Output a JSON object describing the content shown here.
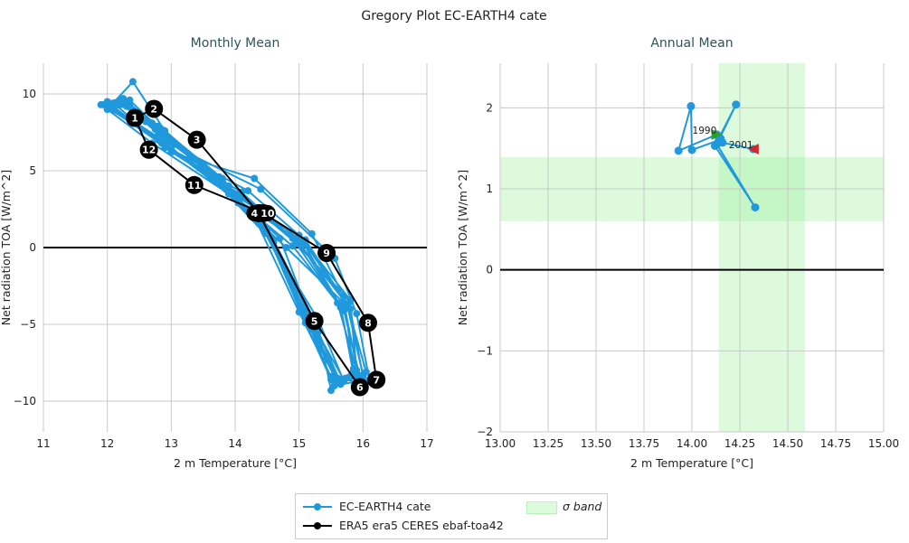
{
  "title": "Gregory Plot EC-EARTH4 cate",
  "colors": {
    "model": "#1f99dc",
    "obs": "#000000",
    "band": "#90ee90",
    "title": "#2f5555",
    "start": "#2ca02c",
    "end": "#d62728"
  },
  "chart_data": [
    {
      "type": "line",
      "title": "Monthly Mean",
      "xlabel": "2 m Temperature [°C]",
      "ylabel": "Net radiation TOA [W/m^2]",
      "xlim": [
        11,
        17
      ],
      "ylim": [
        -12,
        12
      ],
      "xticks": [
        11,
        12,
        13,
        14,
        15,
        16,
        17
      ],
      "yticks": [
        -10,
        -5,
        0,
        5,
        10
      ],
      "grid": true,
      "hline": 0,
      "series": [
        {
          "name": "EC-EARTH4 cate",
          "years": [
            {
              "x": [
                12.0,
                12.4,
                12.9,
                13.8,
                14.6,
                15.3,
                15.5,
                15.9,
                15.6,
                14.9,
                14.1,
                12.9
              ],
              "y": [
                9.0,
                10.8,
                7.6,
                4.4,
                0.5,
                -5.2,
                -9.3,
                -8.0,
                -3.6,
                0.6,
                3.6,
                6.6
              ]
            },
            {
              "x": [
                11.95,
                12.2,
                12.7,
                13.6,
                14.5,
                15.1,
                15.6,
                16.0,
                15.8,
                15.1,
                14.0,
                12.8
              ],
              "y": [
                9.3,
                9.6,
                8.0,
                4.8,
                1.0,
                -4.6,
                -8.8,
                -8.4,
                -4.0,
                0.2,
                3.2,
                7.0
              ]
            },
            {
              "x": [
                12.1,
                12.3,
                12.8,
                13.9,
                14.4,
                15.2,
                15.7,
                15.85,
                15.7,
                15.2,
                14.3,
                13.0
              ],
              "y": [
                9.1,
                9.2,
                7.4,
                4.0,
                1.5,
                -4.9,
                -8.6,
                -7.9,
                -3.2,
                0.9,
                4.5,
                6.2
              ]
            },
            {
              "x": [
                12.0,
                12.25,
                12.6,
                13.5,
                14.6,
                15.3,
                15.65,
                16.1,
                15.9,
                15.56,
                14.4,
                12.9
              ],
              "y": [
                9.5,
                9.7,
                8.2,
                5.2,
                0.3,
                -5.5,
                -8.9,
                -8.6,
                -4.3,
                -0.7,
                3.8,
                6.9
              ]
            },
            {
              "x": [
                12.05,
                12.35,
                12.85,
                13.75,
                14.3,
                15.0,
                15.5,
                15.95,
                15.7,
                14.8,
                14.05,
                12.8
              ],
              "y": [
                9.2,
                9.3,
                7.7,
                4.6,
                2.0,
                -4.2,
                -8.4,
                -8.8,
                -3.6,
                0.0,
                2.9,
                7.2
              ]
            },
            {
              "x": [
                11.9,
                12.2,
                12.75,
                13.65,
                14.7,
                15.25,
                15.6,
                15.85,
                15.65,
                15.0,
                13.9,
                12.7
              ],
              "y": [
                9.3,
                9.4,
                7.9,
                4.7,
                0.6,
                -5.4,
                -8.7,
                -8.1,
                -3.9,
                0.4,
                3.5,
                6.8
              ]
            },
            {
              "x": [
                12.0,
                12.3,
                12.9,
                13.8,
                14.5,
                15.15,
                15.55,
                15.9,
                15.8,
                14.95,
                14.1,
                12.9
              ],
              "y": [
                9.0,
                9.5,
                7.5,
                4.3,
                0.9,
                -5.0,
                -9.0,
                -8.3,
                -3.5,
                0.3,
                3.3,
                6.5
              ]
            },
            {
              "x": [
                12.1,
                12.35,
                12.8,
                13.7,
                14.55,
                15.2,
                15.6,
                16.05,
                15.75,
                15.1,
                14.0,
                12.85
              ],
              "y": [
                9.4,
                9.6,
                7.8,
                4.5,
                0.7,
                -5.1,
                -8.5,
                -8.1,
                -3.7,
                0.5,
                3.4,
                6.9
              ]
            },
            {
              "x": [
                12.0,
                12.2,
                12.7,
                13.6,
                14.45,
                15.3,
                15.7,
                15.9,
                15.8,
                15.0,
                14.2,
                13.0
              ],
              "y": [
                9.2,
                9.3,
                8.1,
                4.9,
                1.1,
                -4.7,
                -8.7,
                -8.0,
                -3.4,
                0.8,
                3.7,
                6.4
              ]
            },
            {
              "x": [
                11.95,
                12.3,
                12.85,
                13.75,
                14.6,
                15.2,
                15.6,
                15.95,
                15.7,
                14.9,
                14.0,
                12.8
              ],
              "y": [
                9.3,
                9.5,
                7.6,
                4.4,
                0.4,
                -5.3,
                -8.8,
                -8.4,
                -4.1,
                0.1,
                3.2,
                7.1
              ]
            },
            {
              "x": [
                12.05,
                12.25,
                12.75,
                13.7,
                14.5,
                15.1,
                15.5,
                15.85,
                15.65,
                15.05,
                14.05,
                12.9
              ],
              "y": [
                9.1,
                9.4,
                7.7,
                4.6,
                0.9,
                -4.9,
                -8.6,
                -8.2,
                -3.8,
                0.4,
                3.5,
                6.7
              ]
            },
            {
              "x": [
                12.0,
                12.3,
                12.8,
                13.8,
                14.55,
                15.25,
                15.65,
                16.0,
                15.75,
                15.0,
                14.1,
                12.85
              ],
              "y": [
                9.2,
                9.5,
                7.9,
                4.5,
                0.7,
                -5.0,
                -8.8,
                -8.3,
                -3.7,
                0.3,
                3.4,
                6.8
              ]
            }
          ]
        },
        {
          "name": "ERA5 era5 CERES ebaf-toa42",
          "months": [
            "1",
            "2",
            "3",
            "4",
            "5",
            "6",
            "7",
            "8",
            "9",
            "10",
            "11",
            "12"
          ],
          "x": [
            12.43,
            12.73,
            13.4,
            14.37,
            15.24,
            15.95,
            16.21,
            16.08,
            15.43,
            14.44,
            13.36,
            12.65
          ],
          "y": [
            8.44,
            9.03,
            7.02,
            2.24,
            -4.78,
            -9.09,
            -8.61,
            -4.9,
            -0.35,
            2.24,
            4.07,
            6.37
          ]
        }
      ]
    },
    {
      "type": "line",
      "title": "Annual Mean",
      "xlabel": "2 m Temperature [°C]",
      "ylabel": "Net radiation TOA [W/m^2]",
      "xlim": [
        13.0,
        15.0
      ],
      "ylim": [
        -2,
        2.55
      ],
      "xticks": [
        "13.00",
        "13.25",
        "13.50",
        "13.75",
        "14.00",
        "14.25",
        "14.50",
        "14.75",
        "15.00"
      ],
      "yticks": [
        -2,
        -1,
        0,
        1,
        2
      ],
      "grid": true,
      "hline": 0,
      "sigma_band": {
        "name": "σ band",
        "x": [
          14.14,
          14.59
        ],
        "y": [
          0.6,
          1.39
        ]
      },
      "start_label": "1990",
      "end_label": "2001",
      "series": [
        {
          "name": "EC-EARTH4 cate",
          "x": [
            14.13,
            13.93,
            13.995,
            14.0,
            14.14,
            14.23,
            14.12,
            14.33,
            14.13,
            14.15,
            14.16,
            14.32
          ],
          "y": [
            1.67,
            1.47,
            2.02,
            1.48,
            1.6,
            2.04,
            1.53,
            0.77,
            1.55,
            1.62,
            1.57,
            1.49
          ]
        }
      ]
    }
  ],
  "legend": {
    "items": [
      "EC-EARTH4 cate",
      "ERA5 era5 CERES ebaf-toa42",
      "σ band"
    ]
  }
}
